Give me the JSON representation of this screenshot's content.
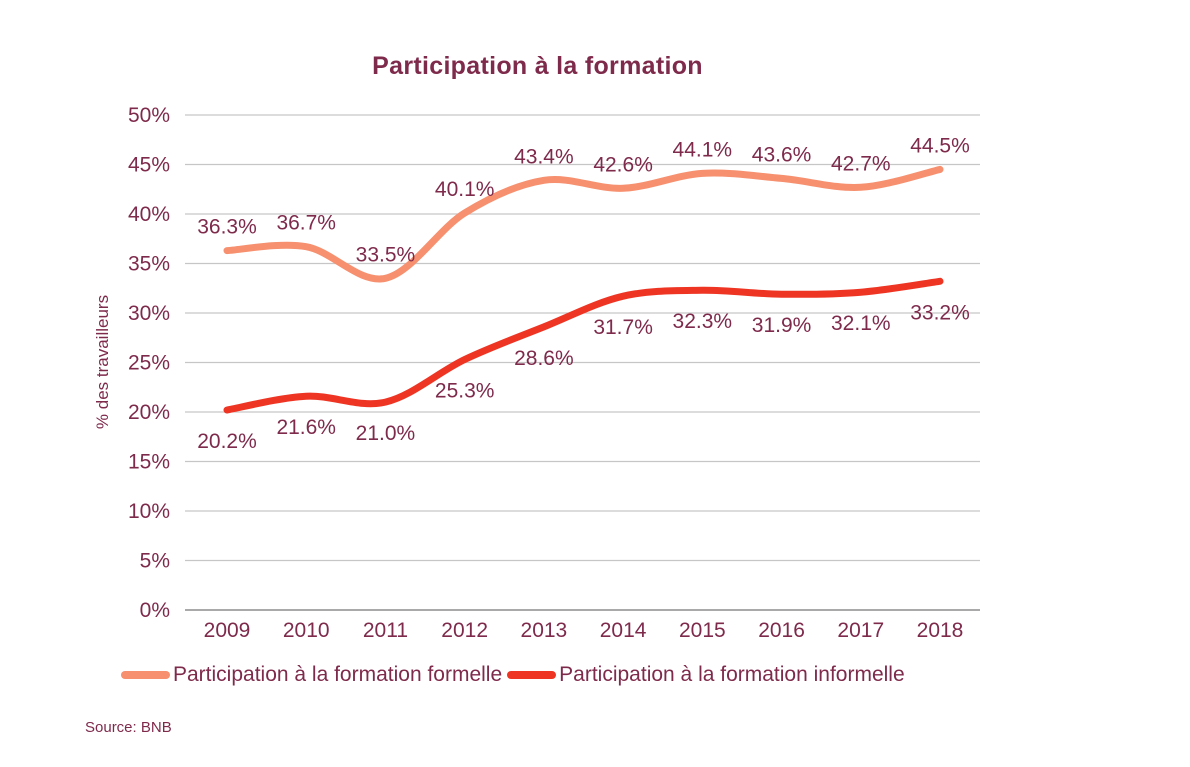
{
  "title": "Participation à la formation",
  "source_note": "Source: BNB",
  "colors": {
    "text": "#7E2A4B",
    "formelle": "#F6906F",
    "informelle": "#EE3524",
    "gridline": "#C6C6C6",
    "axis": "#A9A9A9"
  },
  "chart_data": {
    "type": "line",
    "title": "Participation à la formation",
    "categories": [
      "2009",
      "2010",
      "2011",
      "2012",
      "2013",
      "2014",
      "2015",
      "2016",
      "2017",
      "2018"
    ],
    "series": [
      {
        "name": "Participation à la formation formelle",
        "color_key": "formelle",
        "values": [
          36.3,
          36.7,
          33.5,
          40.1,
          43.4,
          42.6,
          44.1,
          43.6,
          42.7,
          44.5
        ],
        "label_dy": -17
      },
      {
        "name": "Participation à la formation informelle",
        "color_key": "informelle",
        "values": [
          20.2,
          21.6,
          21.0,
          25.3,
          28.6,
          31.7,
          32.3,
          31.9,
          32.1,
          33.2
        ],
        "label_dy": 38
      }
    ],
    "xlabel": "",
    "ylabel": "% des travailleurs",
    "ylim": [
      0,
      50
    ],
    "ytick_step": 5,
    "ytick_suffix": "%",
    "grid": true,
    "smooth_lines": true,
    "legend_position": "bottom"
  }
}
